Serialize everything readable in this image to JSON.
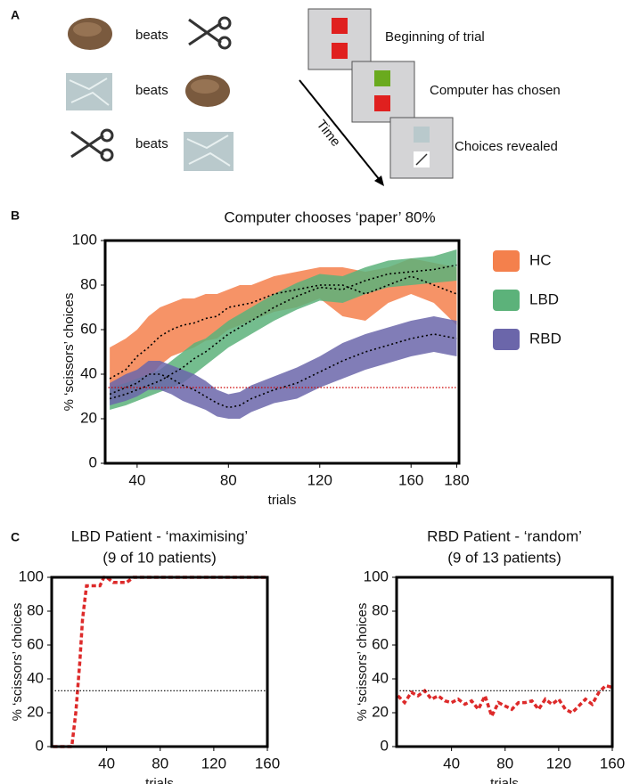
{
  "panel_labels": [
    "A",
    "B",
    "C"
  ],
  "diagram": {
    "rules": [
      "beats",
      "beats",
      "beats"
    ],
    "steps": [
      "Beginning of trial",
      "Computer has chosen",
      "Choices revealed"
    ],
    "arrow_label": "Time"
  },
  "chart_data": [
    {
      "type": "line",
      "title": "Computer chooses ‘paper’ 80%",
      "x_label": "trials",
      "y_label": "% ‘scissors’ choices",
      "x": [
        28,
        35,
        40,
        45,
        50,
        55,
        60,
        65,
        70,
        75,
        80,
        85,
        90,
        95,
        100,
        110,
        120,
        130,
        140,
        150,
        160,
        170,
        180
      ],
      "line_color": "#000000",
      "line_style": "dotted",
      "series": [
        {
          "name": "HC",
          "color": "#f4804c",
          "values": [
            38,
            42,
            48,
            52,
            57,
            60,
            62,
            63,
            65,
            66,
            70,
            71,
            72,
            74,
            76,
            78,
            80,
            80,
            76,
            80,
            84,
            80,
            76
          ],
          "lower": [
            28,
            30,
            34,
            38,
            44,
            48,
            50,
            52,
            55,
            56,
            60,
            62,
            64,
            66,
            68,
            70,
            74,
            66,
            64,
            72,
            76,
            72,
            62
          ],
          "upper": [
            52,
            56,
            60,
            66,
            70,
            72,
            74,
            74,
            76,
            76,
            78,
            80,
            80,
            82,
            84,
            86,
            88,
            88,
            86,
            88,
            92,
            90,
            88
          ]
        },
        {
          "name": "LBD",
          "color": "#5cb27a",
          "values": [
            29,
            31,
            33,
            35,
            37,
            40,
            43,
            47,
            50,
            54,
            58,
            61,
            64,
            67,
            70,
            75,
            79,
            78,
            82,
            85,
            86,
            87,
            89
          ],
          "lower": [
            24,
            26,
            28,
            30,
            32,
            34,
            36,
            40,
            44,
            48,
            52,
            55,
            58,
            61,
            64,
            69,
            73,
            72,
            76,
            79,
            80,
            81,
            82
          ],
          "upper": [
            34,
            36,
            38,
            40,
            42,
            46,
            50,
            54,
            56,
            60,
            64,
            67,
            70,
            73,
            76,
            81,
            85,
            84,
            88,
            91,
            92,
            93,
            96
          ]
        },
        {
          "name": "RBD",
          "color": "#6b66aa",
          "values": [
            31,
            34,
            36,
            40,
            40,
            38,
            35,
            33,
            30,
            27,
            25,
            26,
            29,
            31,
            33,
            36,
            41,
            46,
            50,
            53,
            56,
            58,
            56
          ],
          "lower": [
            26,
            28,
            30,
            33,
            33,
            31,
            28,
            26,
            24,
            21,
            20,
            20,
            23,
            25,
            27,
            29,
            34,
            38,
            42,
            45,
            48,
            50,
            48
          ],
          "upper": [
            36,
            40,
            42,
            46,
            46,
            44,
            42,
            40,
            37,
            33,
            31,
            32,
            35,
            37,
            39,
            43,
            48,
            54,
            58,
            61,
            64,
            66,
            64
          ]
        }
      ],
      "reference_line": {
        "value": 34,
        "color": "#cc0000"
      },
      "xlim": [
        26,
        181
      ],
      "xticks": [
        40,
        80,
        120,
        160,
        180
      ],
      "ylim": [
        0,
        100
      ],
      "yticks": [
        0,
        20,
        40,
        60,
        80,
        100
      ],
      "legend": "right"
    },
    {
      "type": "line",
      "title": [
        "LBD Patient - ‘maximising’",
        "(9 of 10 patients)"
      ],
      "x_label": "trials",
      "y_label": "% ‘scissors’ choices",
      "x": [
        0,
        5,
        10,
        14,
        17,
        20,
        22,
        25,
        30,
        35,
        38,
        40,
        45,
        50,
        55,
        60,
        70,
        80,
        100,
        120,
        140,
        160
      ],
      "line_style": "dashed",
      "series": [
        {
          "color": "#dd2a2a",
          "values": [
            0,
            0,
            0,
            0,
            20,
            50,
            75,
            95,
            95,
            95,
            100,
            100,
            97,
            97,
            97,
            100,
            100,
            100,
            100,
            100,
            100,
            100
          ]
        }
      ],
      "reference_line": {
        "value": 33,
        "color": "#000000"
      },
      "xlim": [
        -1,
        160
      ],
      "xticks": [
        40,
        80,
        120,
        160
      ],
      "ylim": [
        0,
        100
      ],
      "yticks": [
        0,
        20,
        40,
        60,
        80,
        100
      ]
    },
    {
      "type": "line",
      "title": [
        "RBD Patient - ‘random’",
        "(9 of 13 patients)"
      ],
      "x_label": "trials",
      "y_label": "% ‘scissors’ choices",
      "x": [
        0,
        5,
        10,
        15,
        20,
        25,
        30,
        35,
        40,
        45,
        50,
        55,
        60,
        65,
        70,
        75,
        80,
        85,
        90,
        95,
        100,
        105,
        110,
        115,
        120,
        125,
        130,
        135,
        140,
        145,
        150,
        155,
        160
      ],
      "line_style": "dashed",
      "series": [
        {
          "color": "#dd2a2a",
          "values": [
            30,
            26,
            32,
            30,
            33,
            28,
            30,
            27,
            26,
            28,
            25,
            27,
            22,
            30,
            18,
            26,
            24,
            22,
            26,
            26,
            27,
            22,
            28,
            25,
            28,
            22,
            20,
            24,
            28,
            25,
            32,
            36,
            35
          ]
        }
      ],
      "reference_line": {
        "value": 33,
        "color": "#000000"
      },
      "xlim": [
        -1,
        160
      ],
      "xticks": [
        40,
        80,
        120,
        160
      ],
      "ylim": [
        0,
        100
      ],
      "yticks": [
        0,
        20,
        40,
        60,
        80,
        100
      ]
    }
  ]
}
